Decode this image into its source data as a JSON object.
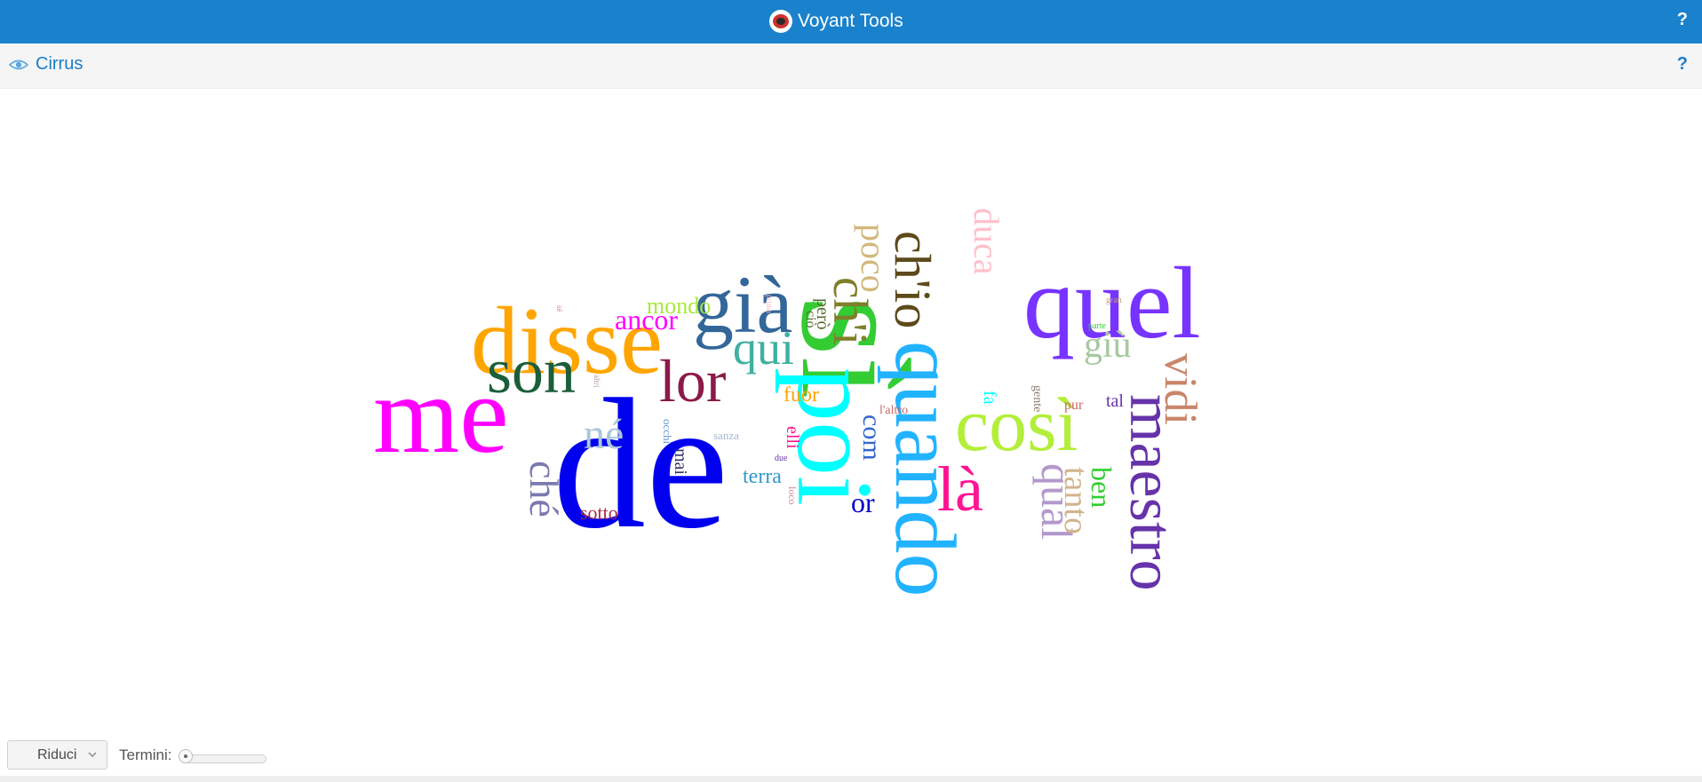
{
  "app": {
    "title": "Voyant Tools",
    "help_label": "?"
  },
  "panel": {
    "title": "Cirrus",
    "help_label": "?"
  },
  "cloud": {
    "words": [
      {
        "text": "de",
        "color": "#0000ee"
      },
      {
        "text": "sì",
        "color": "#33cc33"
      },
      {
        "text": "me",
        "color": "#ff00ff"
      },
      {
        "text": "disse",
        "color": "#ffa500"
      },
      {
        "text": "quel",
        "color": "#7733ff"
      },
      {
        "text": "poi",
        "color": "#00ffff"
      },
      {
        "text": "quando",
        "color": "#22b3ff"
      },
      {
        "text": "così",
        "color": "#b3ee3a"
      },
      {
        "text": "maestro",
        "color": "#6633aa"
      },
      {
        "text": "son",
        "color": "#1b5e3a"
      },
      {
        "text": "già",
        "color": "#336699"
      },
      {
        "text": "ch'io",
        "color": "#5c4a1a"
      },
      {
        "text": "lor",
        "color": "#8b1a4a"
      },
      {
        "text": "ch'i",
        "color": "#7f7f2a"
      },
      {
        "text": "là",
        "color": "#ff1493"
      },
      {
        "text": "qual",
        "color": "#b399cc"
      },
      {
        "text": "qui",
        "color": "#40b0a0"
      },
      {
        "text": "poco",
        "color": "#d2b87a"
      },
      {
        "text": "vidi",
        "color": "#c9856a"
      },
      {
        "text": "né",
        "color": "#a8c8d8"
      },
      {
        "text": "ché",
        "color": "#7a7ab0"
      },
      {
        "text": "duca",
        "color": "#ffc0cb"
      },
      {
        "text": "tanto",
        "color": "#d2b48c"
      },
      {
        "text": "giù",
        "color": "#a8c8a0"
      },
      {
        "text": "ancor",
        "color": "#ff00ff"
      },
      {
        "text": "ben",
        "color": "#33cc33"
      },
      {
        "text": "mondo",
        "color": "#a8e83a"
      },
      {
        "text": "com",
        "color": "#3366cc"
      },
      {
        "text": "or",
        "color": "#0000cc"
      },
      {
        "text": "terra",
        "color": "#3399cc"
      },
      {
        "text": "fuor",
        "color": "#ffa500"
      },
      {
        "text": "sotto",
        "color": "#aa2a4a"
      },
      {
        "text": "però",
        "color": "#556b2f"
      },
      {
        "text": "mai",
        "color": "#333366"
      },
      {
        "text": "elli",
        "color": "#ff1493"
      },
      {
        "text": "tal",
        "color": "#6633aa"
      },
      {
        "text": "fa",
        "color": "#00ffff"
      },
      {
        "text": "gente",
        "color": "#8b7d6b"
      },
      {
        "text": "pur",
        "color": "#cc6666"
      },
      {
        "text": "ciò",
        "color": "#556b2f"
      },
      {
        "text": "l'altro",
        "color": "#cc6666"
      },
      {
        "text": "sanza",
        "color": "#a0b8d8"
      },
      {
        "text": "occhi",
        "color": "#6699cc"
      },
      {
        "text": "loco",
        "color": "#cc88aa"
      },
      {
        "text": "due",
        "color": "#6633aa"
      },
      {
        "text": "altri",
        "color": "#b09a9a"
      },
      {
        "text": "parte",
        "color": "#33cc33"
      },
      {
        "text": "gran",
        "color": "#c0a070"
      },
      {
        "text": "prima",
        "color": "#ffb6c1"
      },
      {
        "text": "sé",
        "color": "#cc88aa"
      }
    ]
  },
  "footer": {
    "reset_button_label": "Riduci",
    "terms_label": "Termini:",
    "terms_slider_fraction": 0.05
  }
}
